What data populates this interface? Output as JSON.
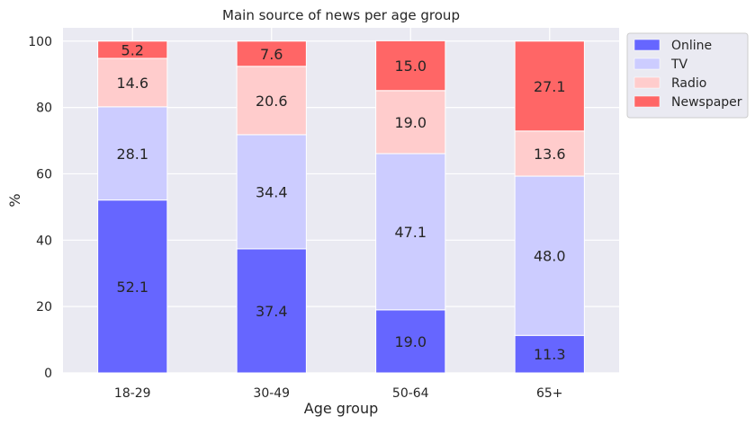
{
  "chart_data": {
    "type": "bar",
    "stacked": true,
    "title": "Main source of news per age group",
    "xlabel": "Age group",
    "ylabel": "%",
    "ylim": [
      0,
      104
    ],
    "yticks": [
      0,
      20,
      40,
      60,
      80,
      100
    ],
    "categories": [
      "18-29",
      "30-49",
      "50-64",
      "65+"
    ],
    "series": [
      {
        "name": "Online",
        "color": "#6666ff",
        "values": [
          52.1,
          37.4,
          19.0,
          11.3
        ],
        "labels": [
          "52.1",
          "37.4",
          "19.0",
          "11.3"
        ]
      },
      {
        "name": "TV",
        "color": "#ccccff",
        "values": [
          28.1,
          34.4,
          47.1,
          48.0
        ],
        "labels": [
          "28.1",
          "34.4",
          "47.1",
          "48.0"
        ]
      },
      {
        "name": "Radio",
        "color": "#ffcccc",
        "values": [
          14.6,
          20.6,
          19.0,
          13.6
        ],
        "labels": [
          "14.6",
          "20.6",
          "19.0",
          "13.6"
        ]
      },
      {
        "name": "Newspaper",
        "color": "#ff6666",
        "values": [
          5.2,
          7.6,
          15.0,
          27.1
        ],
        "labels": [
          "5.2",
          "7.6",
          "15.0",
          "27.1"
        ]
      }
    ],
    "grid": true,
    "legend_position": "outside-top-right"
  }
}
